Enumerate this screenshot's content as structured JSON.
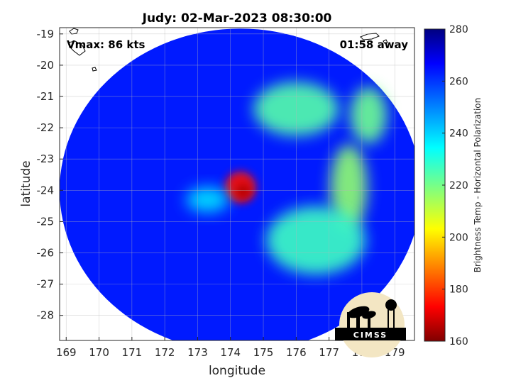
{
  "chart_data": {
    "type": "heatmap",
    "title": "Judy: 02-Mar-2023 08:30:00",
    "xlabel": "longitude",
    "ylabel": "latitude",
    "xlim": [
      168.8,
      179.6
    ],
    "ylim": [
      -28.8,
      -18.8
    ],
    "xticks": [
      "169",
      "170",
      "171",
      "172",
      "173",
      "174",
      "175",
      "176",
      "177",
      "178",
      "179"
    ],
    "yticks": [
      "-19",
      "-20",
      "-21",
      "-22",
      "-23",
      "-24",
      "-25",
      "-26",
      "-27",
      "-28"
    ],
    "grid": true,
    "annotations": {
      "vmax": "Vmax: 86 kts",
      "time_away": "01:58 away"
    },
    "colorbar": {
      "label": "Brightness Temp - Horizontal Polarization",
      "range": [
        160,
        280
      ],
      "ticks": [
        "280",
        "260",
        "240",
        "220",
        "200",
        "180",
        "160"
      ],
      "colormap": "jet"
    },
    "swath": {
      "center": [
        174.3,
        -24.0
      ],
      "radius_deg": 5.5,
      "background_value": 262
    },
    "features": [
      {
        "name": "warm core eyewall",
        "center": [
          174.3,
          -23.9
        ],
        "value": 176
      },
      {
        "name": "east rainband",
        "center": [
          177.6,
          -23.9
        ],
        "value": 218
      },
      {
        "name": "northeast rainband",
        "center": [
          176.0,
          -21.4
        ],
        "value": 225
      },
      {
        "name": "southeast rainband",
        "center": [
          176.6,
          -25.6
        ],
        "value": 228
      },
      {
        "name": "far northeast band",
        "center": [
          178.2,
          -21.6
        ],
        "value": 222
      },
      {
        "name": "inner spiral",
        "center": [
          173.3,
          -24.3
        ],
        "value": 238
      }
    ],
    "logo": "CIMSS"
  }
}
